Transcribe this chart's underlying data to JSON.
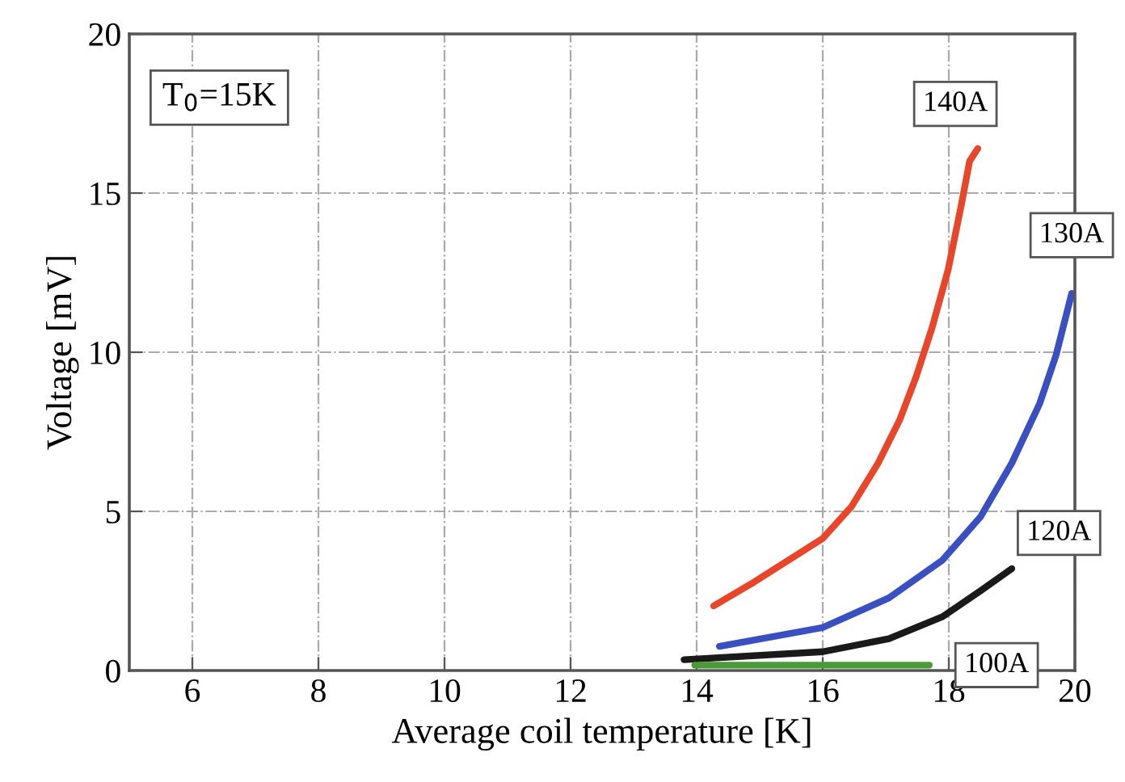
{
  "chart_data": {
    "type": "line",
    "xlabel": "Average coil temperature [K]",
    "ylabel": "Voltage [mV]",
    "xlim": [
      5,
      20
    ],
    "ylim": [
      0,
      20
    ],
    "xticks": [
      6,
      8,
      10,
      12,
      14,
      16,
      18,
      20
    ],
    "yticks": [
      0,
      5,
      10,
      15,
      20
    ],
    "grid": true,
    "legend": false,
    "marker": "none",
    "line_style": "solid",
    "annotations": [
      "T$_{0}$=15K"
    ],
    "series": [
      {
        "name": "140A",
        "color": "#e8462a",
        "x": [
          14.27,
          14.92,
          16.0,
          16.46,
          16.88,
          17.22,
          17.48,
          17.73,
          17.99,
          18.2,
          18.33,
          18.46
        ],
        "values": [
          2.03,
          2.79,
          4.15,
          5.16,
          6.52,
          7.87,
          9.22,
          10.74,
          12.6,
          14.64,
          16.0,
          16.4
        ]
      },
      {
        "name": "130A",
        "color": "#3a4fc0",
        "x": [
          14.36,
          16.0,
          17.05,
          17.9,
          18.5,
          19.0,
          19.44,
          19.7,
          19.95
        ],
        "values": [
          0.76,
          1.35,
          2.28,
          3.47,
          4.82,
          6.52,
          8.38,
          9.9,
          11.85
        ]
      },
      {
        "name": "120A",
        "color": "#1a1a1a",
        "x": [
          13.8,
          16.0,
          17.05,
          17.9,
          18.5,
          19.0
        ],
        "values": [
          0.34,
          0.59,
          1.0,
          1.69,
          2.5,
          3.2
        ]
      },
      {
        "name": "100A",
        "color": "#4a9a3a",
        "x": [
          13.97,
          15.0,
          16.0,
          17.0,
          17.69
        ],
        "values": [
          0.17,
          0.17,
          0.17,
          0.17,
          0.17
        ]
      }
    ]
  }
}
